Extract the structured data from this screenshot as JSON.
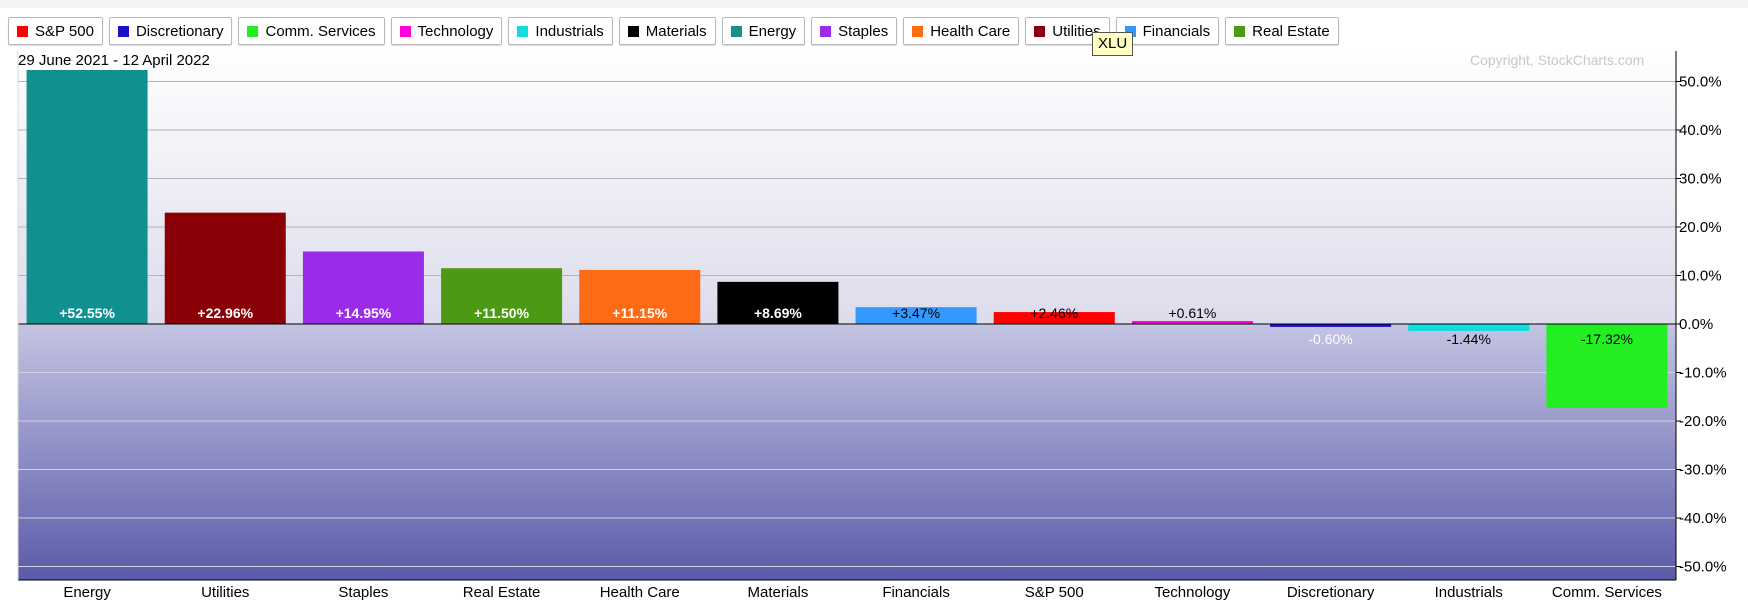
{
  "legend": [
    {
      "label": "S&P 500",
      "color": "#ff0000"
    },
    {
      "label": "Discretionary",
      "color": "#1e10c8"
    },
    {
      "label": "Comm. Services",
      "color": "#22ee22"
    },
    {
      "label": "Technology",
      "color": "#ff00dd"
    },
    {
      "label": "Industrials",
      "color": "#11dddd"
    },
    {
      "label": "Materials",
      "color": "#000000"
    },
    {
      "label": "Energy",
      "color": "#119090"
    },
    {
      "label": "Staples",
      "color": "#9a2be8"
    },
    {
      "label": "Health Care",
      "color": "#ff6a14"
    },
    {
      "label": "Utilities",
      "color": "#8b0006"
    },
    {
      "label": "Financials",
      "color": "#3399ff"
    },
    {
      "label": "Real Estate",
      "color": "#4c9a14"
    }
  ],
  "tooltip": "XLU",
  "date_range": "29 June 2021 - 12 April 2022",
  "copyright": "Copyright, StockCharts.com",
  "chart_data": {
    "type": "bar",
    "categories": [
      "Energy",
      "Utilities",
      "Staples",
      "Real Estate",
      "Health Care",
      "Materials",
      "Financials",
      "S&P 500",
      "Technology",
      "Discretionary",
      "Industrials",
      "Comm. Services"
    ],
    "values": [
      52.55,
      22.96,
      14.95,
      11.5,
      11.15,
      8.69,
      3.47,
      2.46,
      0.61,
      -0.6,
      -1.44,
      -17.32
    ],
    "data_labels": [
      "+52.55%",
      "+22.96%",
      "+14.95%",
      "+11.50%",
      "+11.15%",
      "+8.69%",
      "+3.47%",
      "+2.46%",
      "+0.61%",
      "-0.60%",
      "-1.44%",
      "-17.32%"
    ],
    "colors": [
      "#119090",
      "#8b0006",
      "#9a2be8",
      "#4c9a14",
      "#ff6a14",
      "#000000",
      "#3399ff",
      "#ff0000",
      "#ff00dd",
      "#1e10c8",
      "#11dddd",
      "#22ee22"
    ],
    "label_colors": [
      "#ffffff",
      "#ffffff",
      "#ffffff",
      "#ffffff",
      "#ffffff",
      "#ffffff",
      "#000000",
      "#000000",
      "#000000",
      "#ffffff",
      "#000000",
      "#000000"
    ],
    "yticks": [
      50,
      40,
      30,
      20,
      10,
      0,
      -10,
      -20,
      -30,
      -40,
      -50
    ],
    "ytick_labels": [
      "50.0%",
      "40.0%",
      "30.0%",
      "20.0%",
      "10.0%",
      "0.0%",
      "-10.0%",
      "-20.0%",
      "-30.0%",
      "-40.0%",
      "-50.0%"
    ],
    "ylim": [
      -52,
      52
    ],
    "grid": true
  }
}
